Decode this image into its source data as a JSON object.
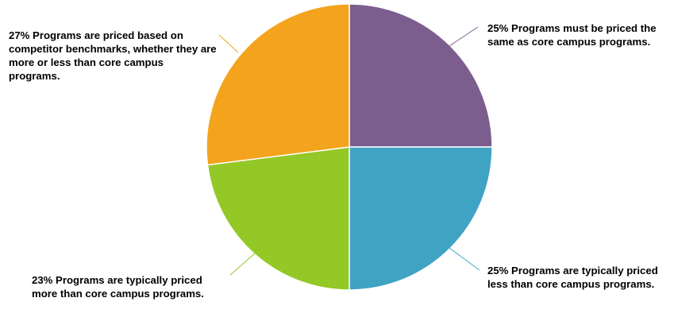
{
  "chart_data": {
    "type": "pie",
    "slices": [
      {
        "value": 25,
        "label": "25% Programs must be priced the same as core campus programs.",
        "color": "#7b5e8e"
      },
      {
        "value": 25,
        "label": "25% Programs are typically priced less than core campus programs.",
        "color": "#3fa3c4"
      },
      {
        "value": 23,
        "label": "23% Programs are typically priced more than core campus programs.",
        "color": "#93c827"
      },
      {
        "value": 27,
        "label": "27% Programs are priced based on competitor benchmarks, whether they are more or less than core campus programs.",
        "color": "#f3a31c"
      }
    ],
    "start_angle": "12 o'clock",
    "direction": "clockwise",
    "legend": "none"
  }
}
